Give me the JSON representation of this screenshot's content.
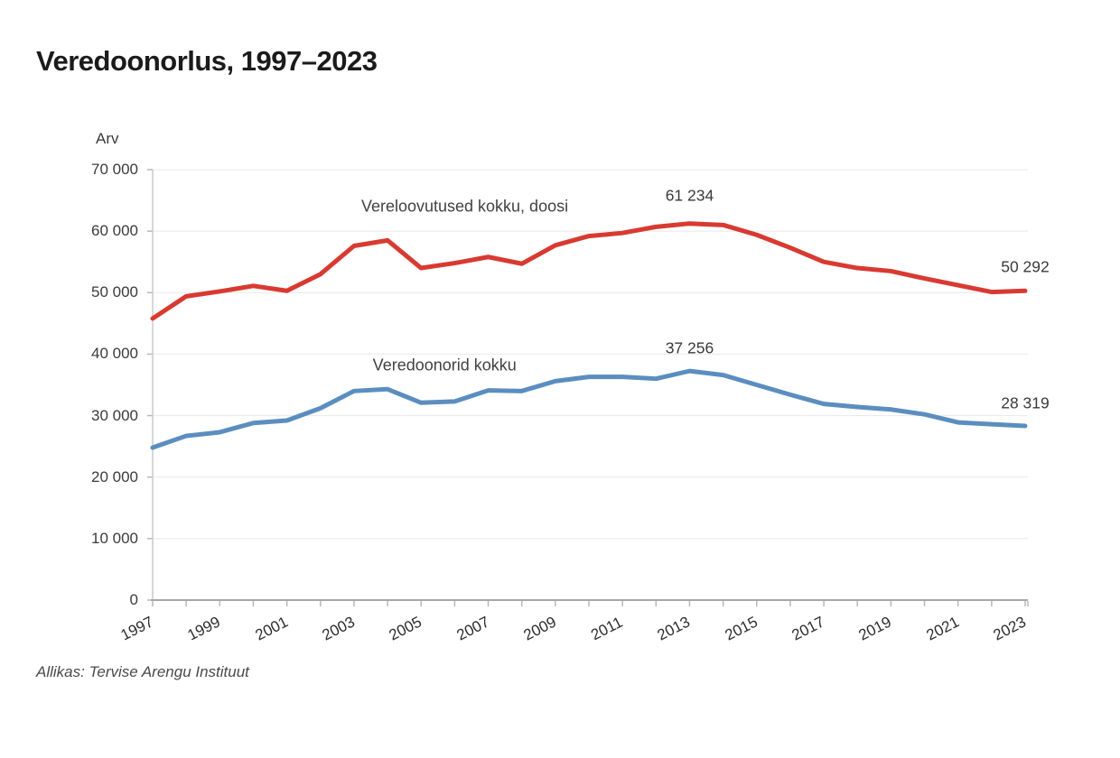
{
  "page": {
    "source": "Allikas: Tervise Arengu Instituut"
  },
  "chart_data": {
    "type": "line",
    "title": "Veredoonorlus, 1997–2023",
    "ylabel": "Arv",
    "xlabel": "",
    "ylim": [
      0,
      70000
    ],
    "grid": true,
    "legend_position": "inline-labels",
    "x": [
      1997,
      1998,
      1999,
      2000,
      2001,
      2002,
      2003,
      2004,
      2005,
      2006,
      2007,
      2008,
      2009,
      2010,
      2011,
      2012,
      2013,
      2014,
      2015,
      2016,
      2017,
      2018,
      2019,
      2020,
      2021,
      2022,
      2023
    ],
    "x_tick_labels": [
      "1997",
      "1999",
      "2001",
      "2003",
      "2005",
      "2007",
      "2009",
      "2011",
      "2013",
      "2015",
      "2017",
      "2019",
      "2021",
      "2023"
    ],
    "y_tick_values": [
      0,
      10000,
      20000,
      30000,
      40000,
      50000,
      60000,
      70000
    ],
    "y_tick_labels": [
      "0",
      "10 000",
      "20 000",
      "30 000",
      "40 000",
      "50 000",
      "60 000",
      "70 000"
    ],
    "series": [
      {
        "name": "Vereloovutused kokku, doosi",
        "color": "#d83a31",
        "values": [
          45800,
          49400,
          50200,
          51100,
          50300,
          53000,
          57600,
          58500,
          54000,
          54800,
          55800,
          54700,
          57700,
          59200,
          59700,
          60700,
          61234,
          61000,
          59400,
          57300,
          55000,
          54000,
          53500,
          52300,
          51200,
          50100,
          50292
        ]
      },
      {
        "name": "Veredoonorid kokku",
        "color": "#5b8ebf",
        "values": [
          24800,
          26700,
          27300,
          28800,
          29200,
          31200,
          34000,
          34300,
          32100,
          32300,
          34100,
          34000,
          35600,
          36300,
          36300,
          36000,
          37256,
          36600,
          35000,
          33400,
          31900,
          31400,
          31000,
          30200,
          28900,
          28600,
          28319
        ]
      }
    ],
    "series_labels": [
      {
        "text": "Vereloovutused kokku, doosi",
        "anchor_year": 2006.3,
        "anchor_value": 64000
      },
      {
        "text": "Veredoonorid kokku",
        "anchor_year": 2005.7,
        "anchor_value": 38200
      }
    ],
    "annotations": [
      {
        "text": "61 234",
        "year": 2013,
        "series": 0,
        "dy": -31
      },
      {
        "text": "50 292",
        "year": 2023,
        "series": 0,
        "dy": -26
      },
      {
        "text": "37 256",
        "year": 2013,
        "series": 1,
        "dy": -25
      },
      {
        "text": "28 319",
        "year": 2023,
        "series": 1,
        "dy": -25
      }
    ],
    "colors": {
      "grid": "#e8e8e8",
      "y_axis": "#cccccc",
      "x_axis": "#a8a8a8",
      "tick": "#b8b8b8"
    }
  }
}
